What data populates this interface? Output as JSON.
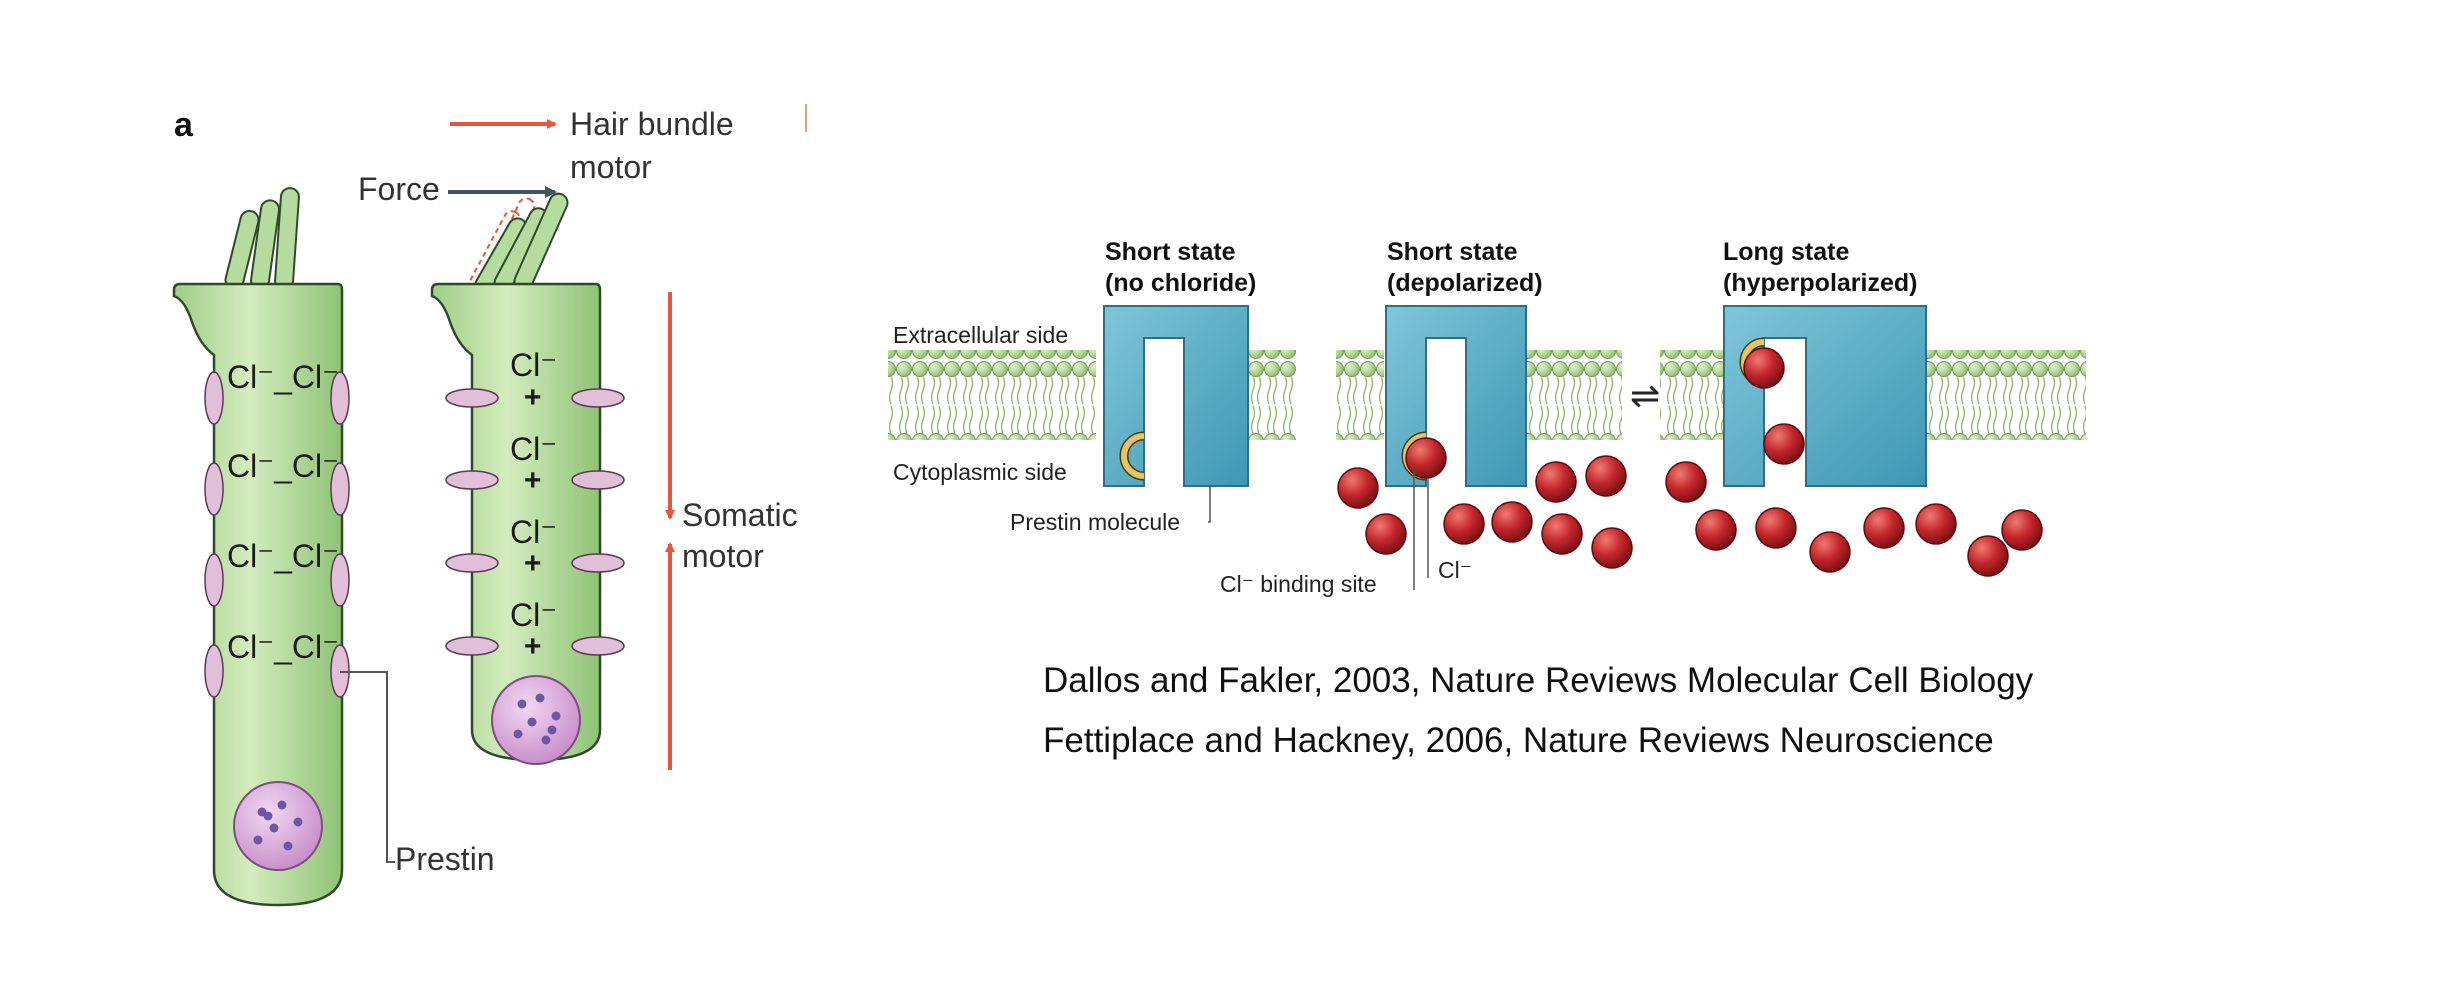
{
  "panel_a": {
    "panel_letter": "a",
    "hair_bundle_motor_line1": "Hair bundle",
    "hair_bundle_motor_line2": "motor",
    "force_label": "Force",
    "somatic_motor_line1": "Somatic",
    "somatic_motor_line2": "motor",
    "prestin_label": "Prestin",
    "chloride_label": "Cl⁻_Cl⁻",
    "chloride_single": "Cl⁻",
    "plus_sign": "+",
    "colors": {
      "cell_body": "#b7dba0",
      "cell_outline": "#2f4a2a",
      "prestin": "#e2bfd9",
      "arrow_red": "#e8563f",
      "arrow_dark": "#3e5661",
      "nucleus": "#d7a8d8"
    }
  },
  "panel_b": {
    "states": [
      {
        "line1": "Short state",
        "line2": "(no chloride)"
      },
      {
        "line1": "Short state",
        "line2": "(depolarized)"
      },
      {
        "line1": "Long state",
        "line2": "(hyperpolarized)"
      }
    ],
    "extracellular_label": "Extracellular side",
    "cytoplasmic_label": "Cytoplasmic side",
    "prestin_molecule_label": "Prestin molecule",
    "binding_site_label": "Cl⁻ binding site",
    "chloride_ion_label": "Cl⁻",
    "equilibrium_symbol": "⇌",
    "colors": {
      "protein": "#5bb1c9",
      "lipid": "#a6cf84",
      "chloride": "#b3262b",
      "binding_site": "#e5c468"
    }
  },
  "citations": [
    "Dallos and Fakler, 2003, Nature Reviews Molecular Cell Biology",
    "Fettiplace and Hackney, 2006, Nature Reviews Neuroscience"
  ]
}
